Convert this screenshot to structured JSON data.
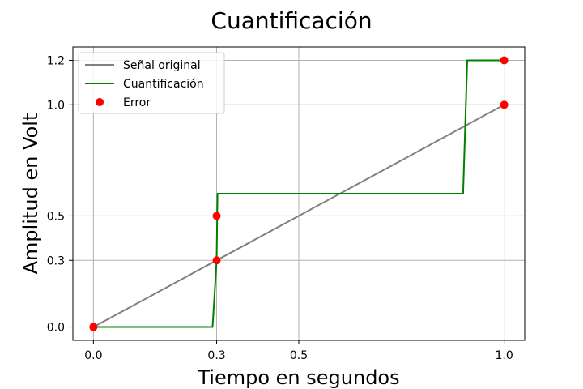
{
  "chart_data": {
    "type": "line",
    "title": "Cuantificación",
    "xlabel": "Tiempo en segundos",
    "ylabel": "Amplitud en Volt",
    "xlim": [
      -0.05,
      1.05
    ],
    "ylim": [
      -0.06,
      1.26
    ],
    "xticks": [
      0.0,
      0.3,
      0.5,
      1.0
    ],
    "xtick_labels": [
      "0.0",
      "0.3",
      "0.5",
      "1.0"
    ],
    "yticks": [
      0.0,
      0.3,
      0.5,
      1.0,
      1.2
    ],
    "ytick_labels": [
      "0.0",
      "0.3",
      "0.5",
      "1.0",
      "1.2"
    ],
    "grid": true,
    "legend_position": "top-left",
    "series": [
      {
        "name": "Señal original",
        "kind": "line",
        "color": "#808080",
        "x": [
          0.0,
          1.0
        ],
        "y": [
          0.0,
          1.0
        ]
      },
      {
        "name": "Cuantificación",
        "kind": "line",
        "color": "#008000",
        "x": [
          0.0,
          0.29,
          0.3,
          0.302,
          0.9,
          0.91,
          1.0
        ],
        "y": [
          0.0,
          0.0,
          0.3,
          0.6,
          0.6,
          1.2,
          1.2
        ]
      },
      {
        "name": "Error",
        "kind": "markers",
        "color": "#ff0000",
        "x": [
          0.0,
          0.3,
          0.3,
          1.0,
          1.0
        ],
        "y": [
          0.0,
          0.3,
          0.5,
          1.0,
          1.2
        ]
      }
    ]
  }
}
